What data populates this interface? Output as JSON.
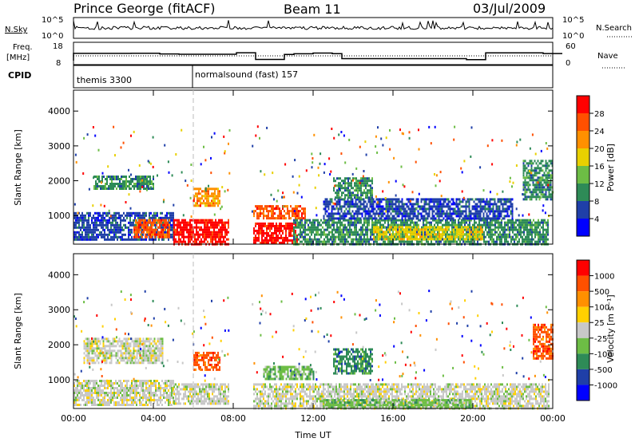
{
  "header": {
    "station": "Prince George (fitACF)",
    "beam": "Beam 11",
    "date": "03/Jul/2009"
  },
  "noise_panel": {
    "left_label": "N.Sky",
    "left_ticks": [
      "10^5",
      "10^0"
    ],
    "right_label": "N.Search",
    "right_ticks": [
      "10^5",
      "10^0"
    ]
  },
  "freq_panel": {
    "left_label_1": "Freq.",
    "left_label_2": "[MHz]",
    "left_ticks": [
      "18",
      "8"
    ],
    "right_label": "Nave",
    "right_ticks": [
      "60",
      "0"
    ]
  },
  "cpid_panel": {
    "label": "CPID",
    "modes": [
      {
        "name": "themis 3300",
        "start_hour": 0
      },
      {
        "name": "normalsound (fast) 157",
        "start_hour": 6.0
      }
    ]
  },
  "colors": {
    "power": [
      "#0000ff",
      "#1f3fa8",
      "#2e8b57",
      "#6dbd45",
      "#e8d000",
      "#ff9000",
      "#ff5000",
      "#ff0000"
    ],
    "velocity": [
      "#0000ff",
      "#1f3fa8",
      "#2e8b57",
      "#6dbd45",
      "#c8c8c8",
      "#ffd000",
      "#ff9000",
      "#ff5000",
      "#ff0000"
    ]
  },
  "chart_data": [
    {
      "type": "heatmap",
      "name": "power",
      "xlabel": "Time UT",
      "ylabel": "Slant Range [km]",
      "x_ticks": [
        "00:00",
        "04:00",
        "08:00",
        "12:00",
        "16:00",
        "20:00",
        "00:00"
      ],
      "xlim": [
        0,
        24
      ],
      "ylim": [
        180,
        4600
      ],
      "y_ticks": [
        1000,
        2000,
        3000,
        4000
      ],
      "colorbar": {
        "label": "Power [dB]",
        "ticks": [
          "28",
          "24",
          "20",
          "16",
          "12",
          "8",
          "4"
        ]
      },
      "data_gap": [
        7.9,
        8.9
      ],
      "regions": [
        {
          "t0": 0.0,
          "t1": 5.0,
          "r0": 300,
          "r1": 1100,
          "level": 1
        },
        {
          "t0": 1.0,
          "t1": 4.0,
          "r0": 1750,
          "r1": 2150,
          "level": 2
        },
        {
          "t0": 3.0,
          "t1": 4.8,
          "r0": 400,
          "r1": 900,
          "level": 6
        },
        {
          "t0": 5.0,
          "t1": 7.8,
          "r0": 200,
          "r1": 900,
          "level": 7
        },
        {
          "t0": 6.0,
          "t1": 7.3,
          "r0": 1300,
          "r1": 1800,
          "level": 5
        },
        {
          "t0": 9.0,
          "t1": 11.2,
          "r0": 200,
          "r1": 800,
          "level": 7
        },
        {
          "t0": 9.0,
          "t1": 11.6,
          "r0": 900,
          "r1": 1300,
          "level": 6
        },
        {
          "t0": 11.0,
          "t1": 23.8,
          "r0": 200,
          "r1": 900,
          "level": 2
        },
        {
          "t0": 15.0,
          "t1": 20.5,
          "r0": 300,
          "r1": 700,
          "level": 4
        },
        {
          "t0": 12.5,
          "t1": 22.0,
          "r0": 900,
          "r1": 1500,
          "level": 1
        },
        {
          "t0": 13.0,
          "t1": 15.0,
          "r0": 1500,
          "r1": 2100,
          "level": 2
        },
        {
          "t0": 22.5,
          "t1": 24.0,
          "r0": 1500,
          "r1": 2600,
          "level": 2
        }
      ]
    },
    {
      "type": "heatmap",
      "name": "velocity",
      "xlabel": "Time UT",
      "ylabel": "Slant Range [km]",
      "x_ticks": [
        "00:00",
        "04:00",
        "08:00",
        "12:00",
        "16:00",
        "20:00",
        "00:00"
      ],
      "xlim": [
        0,
        24
      ],
      "ylim": [
        180,
        4600
      ],
      "y_ticks": [
        1000,
        2000,
        3000,
        4000
      ],
      "colorbar": {
        "label": "Velocity [m s⁻¹]",
        "ticks": [
          "1000",
          "500",
          "100",
          "25",
          "-25",
          "-100",
          "-500",
          "-1000"
        ]
      },
      "data_gap": [
        7.9,
        8.9
      ],
      "regions": [
        {
          "t0": 0.0,
          "t1": 5.0,
          "r0": 300,
          "r1": 1000,
          "level": 4
        },
        {
          "t0": 0.5,
          "t1": 4.5,
          "r0": 1500,
          "r1": 2200,
          "level": 4
        },
        {
          "t0": 5.0,
          "t1": 7.8,
          "r0": 300,
          "r1": 900,
          "level": 4
        },
        {
          "t0": 6.0,
          "t1": 7.3,
          "r0": 1300,
          "r1": 1800,
          "level": 7
        },
        {
          "t0": 9.0,
          "t1": 12.0,
          "r0": 200,
          "r1": 900,
          "level": 4
        },
        {
          "t0": 9.5,
          "t1": 12.0,
          "r0": 1000,
          "r1": 1400,
          "level": 3
        },
        {
          "t0": 12.0,
          "t1": 23.8,
          "r0": 200,
          "r1": 900,
          "level": 4
        },
        {
          "t0": 12.5,
          "t1": 20.0,
          "r0": 200,
          "r1": 450,
          "level": 3
        },
        {
          "t0": 13.0,
          "t1": 15.0,
          "r0": 1200,
          "r1": 1900,
          "level": 2
        },
        {
          "t0": 23.0,
          "t1": 24.0,
          "r0": 1600,
          "r1": 2600,
          "level": 7
        }
      ]
    }
  ]
}
